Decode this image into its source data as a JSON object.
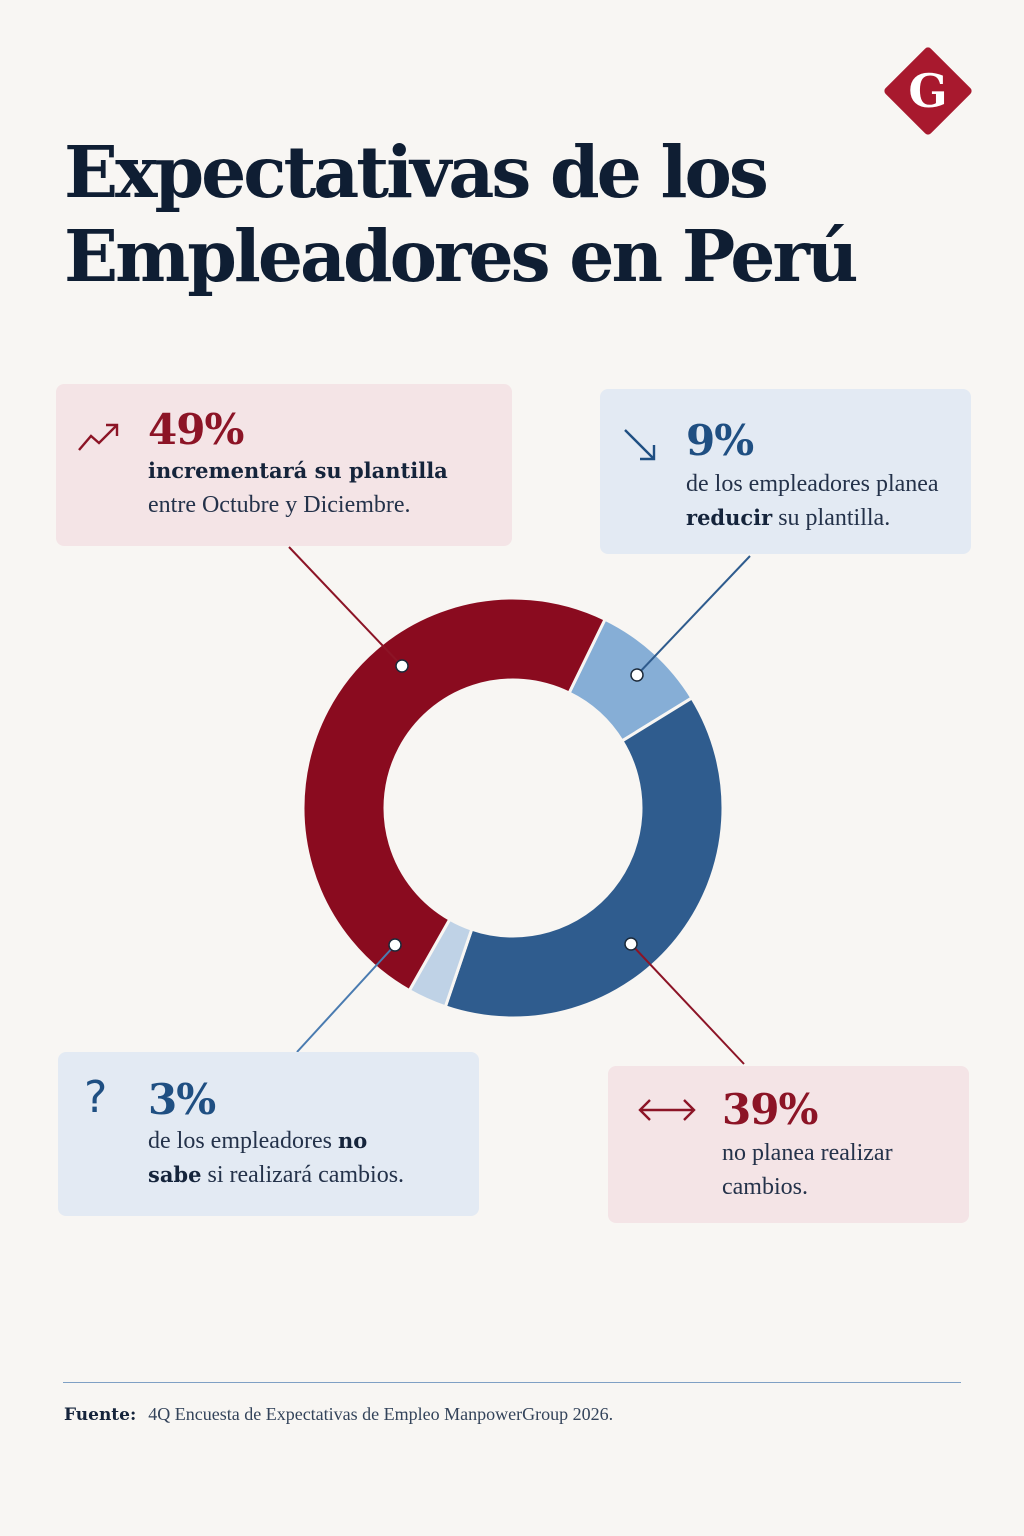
{
  "logo": {
    "letter": "G",
    "color": "#a8192e"
  },
  "title": {
    "line1": "Expectativas de los",
    "line2": "Empleadores en Perú"
  },
  "chart_data": {
    "type": "pie",
    "style": "donut",
    "slices": [
      {
        "label": "incrementará su plantilla",
        "value": 49,
        "color": "#8a0b1f"
      },
      {
        "label": "reducir su plantilla",
        "value": 9,
        "color": "#86aed6"
      },
      {
        "label": "no planea realizar cambios",
        "value": 39,
        "color": "#2f5c8e"
      },
      {
        "label": "no sabe si realizará cambios",
        "value": 3,
        "color": "#bfd2e6"
      }
    ]
  },
  "cards": {
    "increase": {
      "pct": "49%",
      "bold": "incrementará su plantilla",
      "rest": "entre Octubre y Diciembre.",
      "icon": "trend-up-icon"
    },
    "reduce": {
      "pct": "9%",
      "pre": "de los empleadores planea",
      "bold": "reducir",
      "post": " su plantilla.",
      "icon": "trend-down-icon"
    },
    "unknown": {
      "pct": "3%",
      "pre": "de los empleadores ",
      "bold1": "no",
      "bold2": "sabe",
      "post": " si realizará cambios.",
      "icon": "question-icon"
    },
    "nochange": {
      "pct": "39%",
      "line1": "no planea realizar",
      "line2": "cambios.",
      "icon": "double-arrow-icon"
    }
  },
  "footer": {
    "label": "Fuente:",
    "text": "4Q Encuesta de Expectativas de Empleo ManpowerGroup 2026."
  }
}
